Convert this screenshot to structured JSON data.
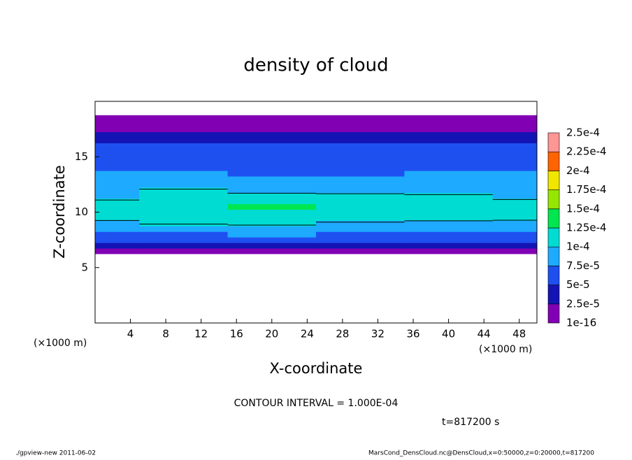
{
  "chart_data": {
    "type": "contour",
    "title": "density of cloud",
    "x_label": "X-coordinate",
    "y_label": "Z-coordinate",
    "x_unit": "(×1000 m)",
    "y_unit": "(×1000 m)",
    "contour_note": "CONTOUR INTERVAL = 1.000E-04",
    "contour_level": 0.0001,
    "time_note": "t=817200 s",
    "footer_left": "./gpview-new  2011-06-02",
    "footer_right": "MarsCond_DensCloud.nc@DensCloud,x=0:50000,z=0:20000,t=817200",
    "xlim": [
      0,
      50
    ],
    "ylim": [
      0,
      20
    ],
    "xticks": [
      4,
      8,
      12,
      16,
      20,
      24,
      28,
      32,
      36,
      40,
      44,
      48
    ],
    "yticks": [
      5,
      10,
      15
    ],
    "x": [
      0,
      10,
      20,
      30,
      40,
      50
    ],
    "y": [
      6.5,
      7,
      7.5,
      8,
      8.5,
      9,
      9.5,
      10,
      10.5,
      11,
      11.5,
      12,
      12.5,
      13,
      13.5,
      14,
      14.5,
      15,
      15.5,
      16,
      16.5,
      17,
      17.5,
      18,
      18.5
    ],
    "z": [
      [
        1e-05,
        1e-05,
        1e-05,
        1e-05,
        1e-05,
        1e-05
      ],
      [
        3e-05,
        3e-05,
        3.5e-05,
        3e-05,
        3e-05,
        3e-05
      ],
      [
        5.5e-05,
        5.5e-05,
        5.8e-05,
        5.5e-05,
        5.5e-05,
        5.5e-05
      ],
      [
        7e-05,
        7.2e-05,
        7.5e-05,
        7e-05,
        7e-05,
        7e-05
      ],
      [
        8.5e-05,
        8.8e-05,
        9e-05,
        8.5e-05,
        8.5e-05,
        8.5e-05
      ],
      [
        9.5e-05,
        0.000102,
        0.000105,
        9.8e-05,
        9.6e-05,
        9.5e-05
      ],
      [
        0.000105,
        0.00011,
        0.000115,
        0.000108,
        0.000105,
        0.000104
      ],
      [
        0.000112,
        0.000115,
        0.000122,
        0.000115,
        0.000112,
        0.00011
      ],
      [
        0.00011,
        0.000118,
        0.000128,
        0.000118,
        0.000112,
        0.000108
      ],
      [
        0.000102,
        0.000115,
        0.00012,
        0.000112,
        0.000108,
        0.000102
      ],
      [
        9.2e-05,
        0.00011,
        0.000106,
        0.000104,
        0.000102,
        9.5e-05
      ],
      [
        8.5e-05,
        0.000102,
        9.2e-05,
        9.2e-05,
        9e-05,
        8.5e-05
      ],
      [
        8e-05,
        9e-05,
        8.2e-05,
        8.2e-05,
        8e-05,
        8e-05
      ],
      [
        7.8e-05,
        8e-05,
        7.6e-05,
        7.8e-05,
        7.8e-05,
        7.8e-05
      ],
      [
        7.5e-05,
        7.6e-05,
        6.8e-05,
        7.4e-05,
        7.5e-05,
        7.5e-05
      ],
      [
        7e-05,
        7e-05,
        6.2e-05,
        6.8e-05,
        7e-05,
        7e-05
      ],
      [
        6.6e-05,
        6.5e-05,
        5.8e-05,
        6.2e-05,
        6.6e-05,
        6.6e-05
      ],
      [
        6.4e-05,
        6.2e-05,
        5.6e-05,
        6e-05,
        6.4e-05,
        6.4e-05
      ],
      [
        6e-05,
        5.8e-05,
        5.8e-05,
        5.8e-05,
        6e-05,
        6e-05
      ],
      [
        5.5e-05,
        5.5e-05,
        5.6e-05,
        5.5e-05,
        5.5e-05,
        5.5e-05
      ],
      [
        4e-05,
        4e-05,
        4e-05,
        4e-05,
        4e-05,
        4e-05
      ],
      [
        3e-05,
        3e-05,
        3e-05,
        3e-05,
        3e-05,
        3e-05
      ],
      [
        2e-05,
        2e-05,
        2e-05,
        2e-05,
        2e-05,
        2e-05
      ],
      [
        1.2e-05,
        1.2e-05,
        1.2e-05,
        1.2e-05,
        1.2e-05,
        1.2e-05
      ],
      [
        5e-06,
        5e-06,
        5e-06,
        5e-06,
        5e-06,
        5e-06
      ]
    ],
    "levels": [
      1e-16,
      {
        "value": 2.5e-05,
        "label": "2.5e-5"
      },
      {
        "value": 5e-05,
        "label": "5e-5"
      },
      {
        "value": 7.5e-05,
        "label": "7.5e-5"
      },
      {
        "value": 0.0001,
        "label": "1e-4"
      },
      {
        "value": 0.000125,
        "label": "1.25e-4"
      },
      {
        "value": 0.00015,
        "label": "1.5e-4"
      },
      {
        "value": 0.000175,
        "label": "1.75e-4"
      },
      {
        "value": 0.0002,
        "label": "2e-4"
      },
      {
        "value": 0.000225,
        "label": "2.25e-4"
      },
      {
        "value": 0.00025,
        "label": "2.5e-4"
      }
    ],
    "colors": [
      "#8200b4",
      "#1414b4",
      "#1e50f0",
      "#1eaaff",
      "#00dcd2",
      "#00e650",
      "#96e600",
      "#f0e600",
      "#ff6400",
      "#ff9696"
    ]
  }
}
